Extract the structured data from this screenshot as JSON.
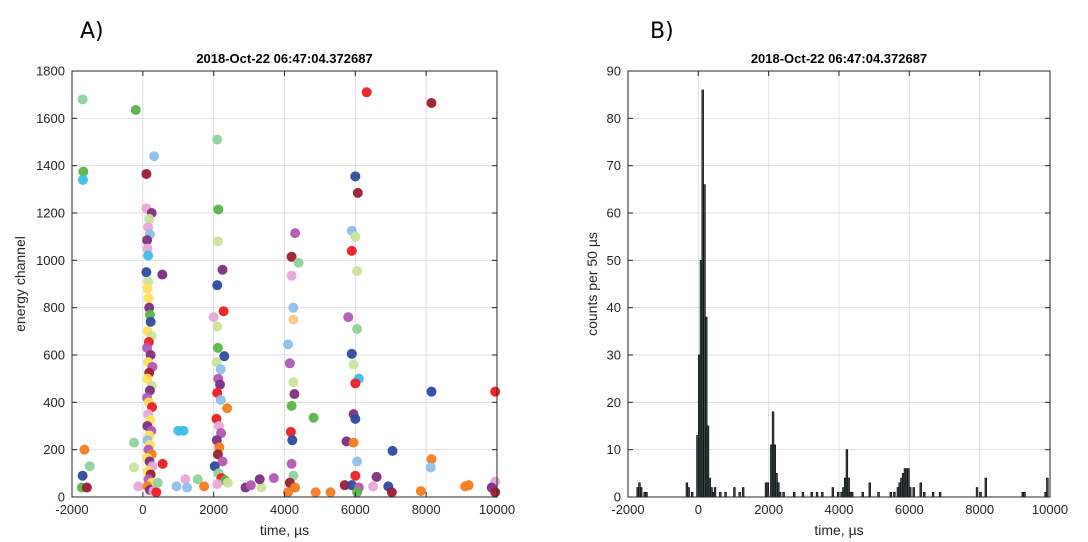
{
  "panels": {
    "a_letter": "A)",
    "b_letter": "B)"
  },
  "chart_data": [
    {
      "type": "scatter",
      "title": "2018-Oct-22 06:47:04.372687",
      "xlabel": "time, µs",
      "ylabel": "energy channel",
      "xlim": [
        -2000,
        10000
      ],
      "ylim": [
        0,
        1800
      ],
      "xticks": [
        -2000,
        0,
        2000,
        4000,
        6000,
        8000,
        10000
      ],
      "yticks": [
        0,
        200,
        400,
        600,
        800,
        1000,
        1200,
        1400,
        1600,
        1800
      ],
      "grid": true,
      "marker_note": "filled circles, colored by event group",
      "points": [
        {
          "x": -1700,
          "y": 1680,
          "c": "#8fd19e"
        },
        {
          "x": -1680,
          "y": 1375,
          "c": "#5ab34a"
        },
        {
          "x": -1690,
          "y": 1340,
          "c": "#3fbde8"
        },
        {
          "x": -1650,
          "y": 200,
          "c": "#f57c20"
        },
        {
          "x": -1500,
          "y": 130,
          "c": "#8fd19e"
        },
        {
          "x": -1700,
          "y": 90,
          "c": "#2e4a9e"
        },
        {
          "x": -1720,
          "y": 40,
          "c": "#5ab34a"
        },
        {
          "x": -1580,
          "y": 40,
          "c": "#9b1c31"
        },
        {
          "x": -200,
          "y": 1635,
          "c": "#5ab34a"
        },
        {
          "x": -250,
          "y": 230,
          "c": "#8fd19e"
        },
        {
          "x": -250,
          "y": 125,
          "c": "#c9e39a"
        },
        {
          "x": -130,
          "y": 45,
          "c": "#e8a6d6"
        },
        {
          "x": 100,
          "y": 1365,
          "c": "#9b1c31"
        },
        {
          "x": 320,
          "y": 1440,
          "c": "#8fbfe8"
        },
        {
          "x": 100,
          "y": 1220,
          "c": "#e8a6d6"
        },
        {
          "x": 250,
          "y": 1200,
          "c": "#7b2f7e"
        },
        {
          "x": 180,
          "y": 1175,
          "c": "#c9e39a"
        },
        {
          "x": 150,
          "y": 1140,
          "c": "#e8a6d6"
        },
        {
          "x": 200,
          "y": 1110,
          "c": "#8fbfe8"
        },
        {
          "x": 120,
          "y": 1085,
          "c": "#7b2f7e"
        },
        {
          "x": 130,
          "y": 1050,
          "c": "#e8a6d6"
        },
        {
          "x": 150,
          "y": 1020,
          "c": "#3fbde8"
        },
        {
          "x": 100,
          "y": 950,
          "c": "#2e4a9e"
        },
        {
          "x": 550,
          "y": 940,
          "c": "#7b2f7e"
        },
        {
          "x": 150,
          "y": 910,
          "c": "#c9e39a"
        },
        {
          "x": 130,
          "y": 880,
          "c": "#ffe05a"
        },
        {
          "x": 160,
          "y": 840,
          "c": "#ffe05a"
        },
        {
          "x": 180,
          "y": 800,
          "c": "#7b2f7e"
        },
        {
          "x": 200,
          "y": 770,
          "c": "#5ab34a"
        },
        {
          "x": 220,
          "y": 740,
          "c": "#2e4a9e"
        },
        {
          "x": 140,
          "y": 700,
          "c": "#ffe05a"
        },
        {
          "x": 250,
          "y": 680,
          "c": "#c9e39a"
        },
        {
          "x": 170,
          "y": 655,
          "c": "#ec1c24"
        },
        {
          "x": 120,
          "y": 630,
          "c": "#b05ab3"
        },
        {
          "x": 220,
          "y": 600,
          "c": "#7b2f7e"
        },
        {
          "x": 150,
          "y": 570,
          "c": "#ffe05a"
        },
        {
          "x": 270,
          "y": 550,
          "c": "#b05ab3"
        },
        {
          "x": 180,
          "y": 525,
          "c": "#9b1c31"
        },
        {
          "x": 130,
          "y": 500,
          "c": "#ffe05a"
        },
        {
          "x": 250,
          "y": 470,
          "c": "#c9e39a"
        },
        {
          "x": 200,
          "y": 450,
          "c": "#7b2f7e"
        },
        {
          "x": 120,
          "y": 420,
          "c": "#b05ab3"
        },
        {
          "x": 170,
          "y": 400,
          "c": "#ffe05a"
        },
        {
          "x": 260,
          "y": 380,
          "c": "#ec1c24"
        },
        {
          "x": 150,
          "y": 350,
          "c": "#e8a6d6"
        },
        {
          "x": 210,
          "y": 325,
          "c": "#ffe05a"
        },
        {
          "x": 130,
          "y": 300,
          "c": "#7b2f7e"
        },
        {
          "x": 240,
          "y": 280,
          "c": "#b05ab3"
        },
        {
          "x": 180,
          "y": 260,
          "c": "#ffe05a"
        },
        {
          "x": 130,
          "y": 240,
          "c": "#8fbfe8"
        },
        {
          "x": 200,
          "y": 220,
          "c": "#ffe05a"
        },
        {
          "x": 160,
          "y": 200,
          "c": "#b05ab3"
        },
        {
          "x": 250,
          "y": 180,
          "c": "#f57c20"
        },
        {
          "x": 120,
          "y": 165,
          "c": "#ffe05a"
        },
        {
          "x": 190,
          "y": 150,
          "c": "#7b2f7e"
        },
        {
          "x": 270,
          "y": 130,
          "c": "#e8a6d6"
        },
        {
          "x": 140,
          "y": 110,
          "c": "#ffe05a"
        },
        {
          "x": 220,
          "y": 95,
          "c": "#9b1c31"
        },
        {
          "x": 160,
          "y": 75,
          "c": "#b05ab3"
        },
        {
          "x": 250,
          "y": 60,
          "c": "#ffe05a"
        },
        {
          "x": 130,
          "y": 45,
          "c": "#f57c20"
        },
        {
          "x": 200,
          "y": 30,
          "c": "#7b2f7e"
        },
        {
          "x": 300,
          "y": 25,
          "c": "#e8a6d6"
        },
        {
          "x": 380,
          "y": 20,
          "c": "#ec1c24"
        },
        {
          "x": 560,
          "y": 140,
          "c": "#ec1c24"
        },
        {
          "x": 420,
          "y": 60,
          "c": "#8fd19e"
        },
        {
          "x": 1000,
          "y": 280,
          "c": "#3fbde8"
        },
        {
          "x": 1150,
          "y": 280,
          "c": "#3fbde8"
        },
        {
          "x": 1200,
          "y": 75,
          "c": "#e8a6d6"
        },
        {
          "x": 1250,
          "y": 40,
          "c": "#8fbfe8"
        },
        {
          "x": 950,
          "y": 45,
          "c": "#8fbfe8"
        },
        {
          "x": 1550,
          "y": 75,
          "c": "#8fd19e"
        },
        {
          "x": 1730,
          "y": 45,
          "c": "#f57c20"
        },
        {
          "x": 2100,
          "y": 1510,
          "c": "#8fd19e"
        },
        {
          "x": 2130,
          "y": 1215,
          "c": "#5ab34a"
        },
        {
          "x": 2120,
          "y": 1080,
          "c": "#c9e39a"
        },
        {
          "x": 2250,
          "y": 960,
          "c": "#7b2f7e"
        },
        {
          "x": 2100,
          "y": 895,
          "c": "#2e4a9e"
        },
        {
          "x": 2280,
          "y": 785,
          "c": "#ec1c24"
        },
        {
          "x": 2000,
          "y": 760,
          "c": "#e8a6d6"
        },
        {
          "x": 2100,
          "y": 720,
          "c": "#c9e39a"
        },
        {
          "x": 2120,
          "y": 630,
          "c": "#5ab34a"
        },
        {
          "x": 2300,
          "y": 595,
          "c": "#2e4a9e"
        },
        {
          "x": 2080,
          "y": 570,
          "c": "#c9e39a"
        },
        {
          "x": 2200,
          "y": 540,
          "c": "#8fbfe8"
        },
        {
          "x": 2130,
          "y": 500,
          "c": "#b05ab3"
        },
        {
          "x": 2180,
          "y": 475,
          "c": "#7b2f7e"
        },
        {
          "x": 2100,
          "y": 440,
          "c": "#ec1c24"
        },
        {
          "x": 2200,
          "y": 410,
          "c": "#8fbfe8"
        },
        {
          "x": 2380,
          "y": 375,
          "c": "#f57c20"
        },
        {
          "x": 2080,
          "y": 330,
          "c": "#ec1c24"
        },
        {
          "x": 2150,
          "y": 300,
          "c": "#e8a6d6"
        },
        {
          "x": 2210,
          "y": 270,
          "c": "#b05ab3"
        },
        {
          "x": 2090,
          "y": 240,
          "c": "#7b2f7e"
        },
        {
          "x": 2160,
          "y": 210,
          "c": "#f57c20"
        },
        {
          "x": 2120,
          "y": 180,
          "c": "#9b1c31"
        },
        {
          "x": 2250,
          "y": 150,
          "c": "#b05ab3"
        },
        {
          "x": 2030,
          "y": 130,
          "c": "#2e4a9e"
        },
        {
          "x": 2140,
          "y": 100,
          "c": "#8fd19e"
        },
        {
          "x": 2220,
          "y": 80,
          "c": "#ec1c24"
        },
        {
          "x": 2320,
          "y": 70,
          "c": "#5ab34a"
        },
        {
          "x": 2100,
          "y": 55,
          "c": "#e8a6d6"
        },
        {
          "x": 2400,
          "y": 60,
          "c": "#c9e39a"
        },
        {
          "x": 2900,
          "y": 40,
          "c": "#7b2f7e"
        },
        {
          "x": 3050,
          "y": 50,
          "c": "#b05ab3"
        },
        {
          "x": 3350,
          "y": 40,
          "c": "#c9e39a"
        },
        {
          "x": 3300,
          "y": 75,
          "c": "#7b2f7e"
        },
        {
          "x": 3700,
          "y": 80,
          "c": "#b05ab3"
        },
        {
          "x": 4300,
          "y": 1115,
          "c": "#b05ab3"
        },
        {
          "x": 4200,
          "y": 1015,
          "c": "#9b1c31"
        },
        {
          "x": 4400,
          "y": 990,
          "c": "#8fd19e"
        },
        {
          "x": 4200,
          "y": 935,
          "c": "#e8a6d6"
        },
        {
          "x": 4250,
          "y": 800,
          "c": "#8fbfe8"
        },
        {
          "x": 4250,
          "y": 750,
          "c": "#f9c98a"
        },
        {
          "x": 4100,
          "y": 645,
          "c": "#8fbfe8"
        },
        {
          "x": 4150,
          "y": 565,
          "c": "#b05ab3"
        },
        {
          "x": 4250,
          "y": 485,
          "c": "#c9e39a"
        },
        {
          "x": 4280,
          "y": 435,
          "c": "#7b2f7e"
        },
        {
          "x": 4200,
          "y": 385,
          "c": "#5ab34a"
        },
        {
          "x": 4180,
          "y": 275,
          "c": "#ec1c24"
        },
        {
          "x": 4220,
          "y": 240,
          "c": "#2e4a9e"
        },
        {
          "x": 4200,
          "y": 140,
          "c": "#b05ab3"
        },
        {
          "x": 4250,
          "y": 90,
          "c": "#8fd19e"
        },
        {
          "x": 4150,
          "y": 60,
          "c": "#9b1c31"
        },
        {
          "x": 4300,
          "y": 40,
          "c": "#f57c20"
        },
        {
          "x": 4100,
          "y": 20,
          "c": "#f57c20"
        },
        {
          "x": 4820,
          "y": 335,
          "c": "#5ab34a"
        },
        {
          "x": 4880,
          "y": 20,
          "c": "#f57c20"
        },
        {
          "x": 5300,
          "y": 20,
          "c": "#f57c20"
        },
        {
          "x": 5700,
          "y": 50,
          "c": "#9b1c31"
        },
        {
          "x": 6320,
          "y": 1710,
          "c": "#ec1c24"
        },
        {
          "x": 6000,
          "y": 1355,
          "c": "#2e4a9e"
        },
        {
          "x": 6070,
          "y": 1285,
          "c": "#9b1c31"
        },
        {
          "x": 5900,
          "y": 1125,
          "c": "#8fbfe8"
        },
        {
          "x": 6000,
          "y": 1100,
          "c": "#c9e39a"
        },
        {
          "x": 5900,
          "y": 1040,
          "c": "#ec1c24"
        },
        {
          "x": 6050,
          "y": 955,
          "c": "#c9e39a"
        },
        {
          "x": 5800,
          "y": 760,
          "c": "#b05ab3"
        },
        {
          "x": 6050,
          "y": 710,
          "c": "#8fd19e"
        },
        {
          "x": 5900,
          "y": 605,
          "c": "#2e4a9e"
        },
        {
          "x": 5950,
          "y": 560,
          "c": "#c9e39a"
        },
        {
          "x": 6100,
          "y": 500,
          "c": "#3fbde8"
        },
        {
          "x": 6000,
          "y": 480,
          "c": "#ec1c24"
        },
        {
          "x": 5950,
          "y": 350,
          "c": "#7b2f7e"
        },
        {
          "x": 6000,
          "y": 330,
          "c": "#2e4a9e"
        },
        {
          "x": 5750,
          "y": 235,
          "c": "#7b2f7e"
        },
        {
          "x": 5950,
          "y": 230,
          "c": "#f57c20"
        },
        {
          "x": 6050,
          "y": 150,
          "c": "#8fbfe8"
        },
        {
          "x": 6000,
          "y": 90,
          "c": "#ec1c24"
        },
        {
          "x": 5900,
          "y": 50,
          "c": "#2e4a9e"
        },
        {
          "x": 6100,
          "y": 40,
          "c": "#b05ab3"
        },
        {
          "x": 6050,
          "y": 20,
          "c": "#5ab34a"
        },
        {
          "x": 6600,
          "y": 85,
          "c": "#7b2f7e"
        },
        {
          "x": 6500,
          "y": 45,
          "c": "#e8a6d6"
        },
        {
          "x": 6930,
          "y": 45,
          "c": "#2e4a9e"
        },
        {
          "x": 7050,
          "y": 195,
          "c": "#2e4a9e"
        },
        {
          "x": 7030,
          "y": 20,
          "c": "#9b1c31"
        },
        {
          "x": 7850,
          "y": 25,
          "c": "#f57c20"
        },
        {
          "x": 8150,
          "y": 1665,
          "c": "#9b1c31"
        },
        {
          "x": 8150,
          "y": 445,
          "c": "#2e4a9e"
        },
        {
          "x": 8150,
          "y": 160,
          "c": "#f57c20"
        },
        {
          "x": 8130,
          "y": 125,
          "c": "#8fbfe8"
        },
        {
          "x": 9100,
          "y": 45,
          "c": "#f57c20"
        },
        {
          "x": 9200,
          "y": 50,
          "c": "#f57c20"
        },
        {
          "x": 9950,
          "y": 445,
          "c": "#ec1c24"
        },
        {
          "x": 9950,
          "y": 65,
          "c": "#e8a6d6"
        },
        {
          "x": 9850,
          "y": 40,
          "c": "#7b2f7e"
        },
        {
          "x": 9950,
          "y": 20,
          "c": "#9b1c31"
        }
      ]
    },
    {
      "type": "bar",
      "subtype": "histogram",
      "title": "2018-Oct-22 06:47:04.372687",
      "xlabel": "time, µs",
      "ylabel": "counts per 50 µs",
      "xlim": [
        -2000,
        10000
      ],
      "ylim": [
        0,
        90
      ],
      "xticks": [
        -2000,
        0,
        2000,
        4000,
        6000,
        8000,
        10000
      ],
      "yticks": [
        0,
        10,
        20,
        30,
        40,
        50,
        60,
        70,
        80,
        90
      ],
      "grid": true,
      "bin_width": 50,
      "bins": [
        [
          -1750,
          2
        ],
        [
          -1700,
          3
        ],
        [
          -1650,
          2
        ],
        [
          -1550,
          1
        ],
        [
          -1500,
          1
        ],
        [
          -350,
          3
        ],
        [
          -300,
          2
        ],
        [
          -200,
          1
        ],
        [
          -50,
          13
        ],
        [
          0,
          30
        ],
        [
          50,
          50
        ],
        [
          100,
          86
        ],
        [
          150,
          66
        ],
        [
          200,
          38
        ],
        [
          250,
          15
        ],
        [
          300,
          4
        ],
        [
          350,
          2
        ],
        [
          400,
          1
        ],
        [
          450,
          2
        ],
        [
          600,
          1
        ],
        [
          750,
          1
        ],
        [
          1000,
          2
        ],
        [
          1150,
          1
        ],
        [
          1250,
          2
        ],
        [
          1900,
          3
        ],
        [
          1950,
          3
        ],
        [
          2050,
          11
        ],
        [
          2100,
          18
        ],
        [
          2150,
          11
        ],
        [
          2200,
          5
        ],
        [
          2250,
          3
        ],
        [
          2300,
          1
        ],
        [
          2400,
          1
        ],
        [
          2700,
          1
        ],
        [
          2950,
          1
        ],
        [
          3200,
          1
        ],
        [
          3350,
          1
        ],
        [
          3500,
          1
        ],
        [
          3800,
          2
        ],
        [
          3950,
          1
        ],
        [
          4050,
          1
        ],
        [
          4100,
          2
        ],
        [
          4150,
          4
        ],
        [
          4200,
          10
        ],
        [
          4250,
          4
        ],
        [
          4300,
          1
        ],
        [
          4350,
          1
        ],
        [
          4650,
          1
        ],
        [
          4850,
          3
        ],
        [
          5100,
          1
        ],
        [
          5450,
          1
        ],
        [
          5550,
          1
        ],
        [
          5650,
          2
        ],
        [
          5700,
          3
        ],
        [
          5750,
          4
        ],
        [
          5800,
          5
        ],
        [
          5850,
          6
        ],
        [
          5900,
          6
        ],
        [
          5950,
          6
        ],
        [
          6000,
          2
        ],
        [
          6100,
          2
        ],
        [
          6300,
          3
        ],
        [
          6400,
          1
        ],
        [
          6650,
          1
        ],
        [
          6850,
          1
        ],
        [
          7900,
          2
        ],
        [
          8000,
          1
        ],
        [
          8150,
          4
        ],
        [
          9200,
          1
        ],
        [
          9250,
          1
        ],
        [
          9850,
          1
        ],
        [
          9900,
          4
        ]
      ]
    }
  ]
}
